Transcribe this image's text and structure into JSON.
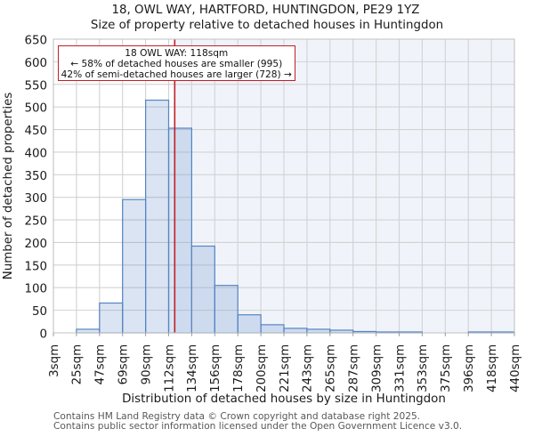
{
  "chart_data": {
    "type": "bar",
    "title": "18, OWL WAY, HARTFORD, HUNTINGDON, PE29 1YZ",
    "subtitle": "Size of property relative to detached houses in Huntingdon",
    "xlabel": "Distribution of detached houses by size in Huntingdon",
    "ylabel": "Number of detached properties",
    "categories": [
      "3sqm",
      "25sqm",
      "47sqm",
      "69sqm",
      "90sqm",
      "112sqm",
      "134sqm",
      "156sqm",
      "178sqm",
      "200sqm",
      "221sqm",
      "243sqm",
      "265sqm",
      "287sqm",
      "309sqm",
      "331sqm",
      "353sqm",
      "375sqm",
      "396sqm",
      "418sqm",
      "440sqm"
    ],
    "values": [
      0,
      8,
      66,
      295,
      515,
      453,
      192,
      105,
      40,
      18,
      10,
      8,
      6,
      3,
      2,
      2,
      0,
      0,
      2,
      2
    ],
    "ylim": [
      0,
      650
    ],
    "ytick_step": 50,
    "grid": true,
    "legend": false,
    "marker": {
      "sqm": 118,
      "label": "18 OWL WAY: 118sqm",
      "smaller_text": "← 58% of detached houses are smaller (995)",
      "larger_text": "42% of semi-detached houses are larger (728) →"
    },
    "colors": {
      "bar_edge": "#5585c5",
      "bar_fill": "rgba(85,133,197,0.22)",
      "larger_region_fill": "rgba(85,133,197,0.085)",
      "marker_line": "#c11f26",
      "grid_line": "#d2d2d2",
      "plot_border": "#c0c0c0",
      "tick_mark": "#9a9a9a",
      "text": "#1a1a1a",
      "footer_text": "#585858"
    }
  },
  "footer": [
    "Contains HM Land Registry data © Crown copyright and database right 2025.",
    "Contains public sector information licensed under the Open Government Licence v3.0."
  ]
}
